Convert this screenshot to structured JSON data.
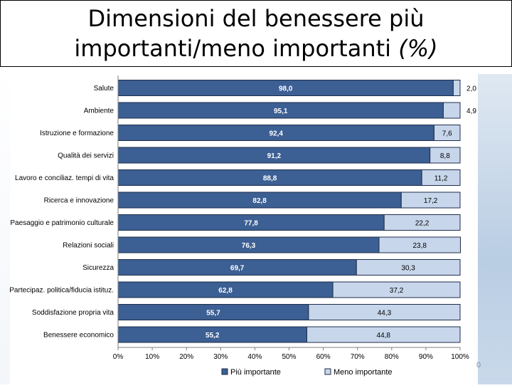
{
  "slide": {
    "title_line1": "Dimensioni del benessere più",
    "title_line2_plain": "importanti/meno importanti ",
    "title_line2_italic": "(%)",
    "page_number": "0"
  },
  "colors": {
    "piu_importante": "#3c5f94",
    "meno_importante": "#c7d6ea",
    "bar_border": "#1e2e48",
    "label_on_dark": "#ffffff",
    "label_on_light": "#000000"
  },
  "chart_data": {
    "type": "bar",
    "orientation": "horizontal",
    "stacked": true,
    "categories": [
      "Salute",
      "Ambiente",
      "Istruzione e formazione",
      "Qualità dei servizi",
      "Lavoro e conciliaz. tempi di vita",
      "Ricerca e innovazione",
      "Paesaggio e patrimonio culturale",
      "Relazioni sociali",
      "Sicurezza",
      "Partecipaz. politica/fiducia istituz.",
      "Soddisfazione propria vita",
      "Benessere economico"
    ],
    "series": [
      {
        "name": "Più importante",
        "values": [
          98.0,
          95.1,
          92.4,
          91.2,
          88.8,
          82.8,
          77.8,
          76.3,
          69.7,
          62.8,
          55.7,
          55.2
        ],
        "labels": [
          "98,0",
          "95,1",
          "92,4",
          "91,2",
          "88,8",
          "82,8",
          "77,8",
          "76,3",
          "69,7",
          "62,8",
          "55,7",
          "55,2"
        ]
      },
      {
        "name": "Meno importante",
        "values": [
          2.0,
          4.9,
          7.6,
          8.8,
          11.2,
          17.2,
          22.2,
          23.8,
          30.3,
          37.2,
          44.3,
          44.8
        ],
        "labels": [
          "2,0",
          "4,9",
          "7,6",
          "8,8",
          "11,2",
          "17,2",
          "22,2",
          "23,8",
          "30,3",
          "37,2",
          "44,3",
          "44,8"
        ]
      }
    ],
    "x_ticks": [
      "0%",
      "10%",
      "20%",
      "30%",
      "40%",
      "50%",
      "60%",
      "70%",
      "80%",
      "90%",
      "100%"
    ],
    "xlim": [
      0,
      100
    ],
    "xlabel": "",
    "ylabel": "",
    "grid": false,
    "legend_position": "bottom"
  }
}
